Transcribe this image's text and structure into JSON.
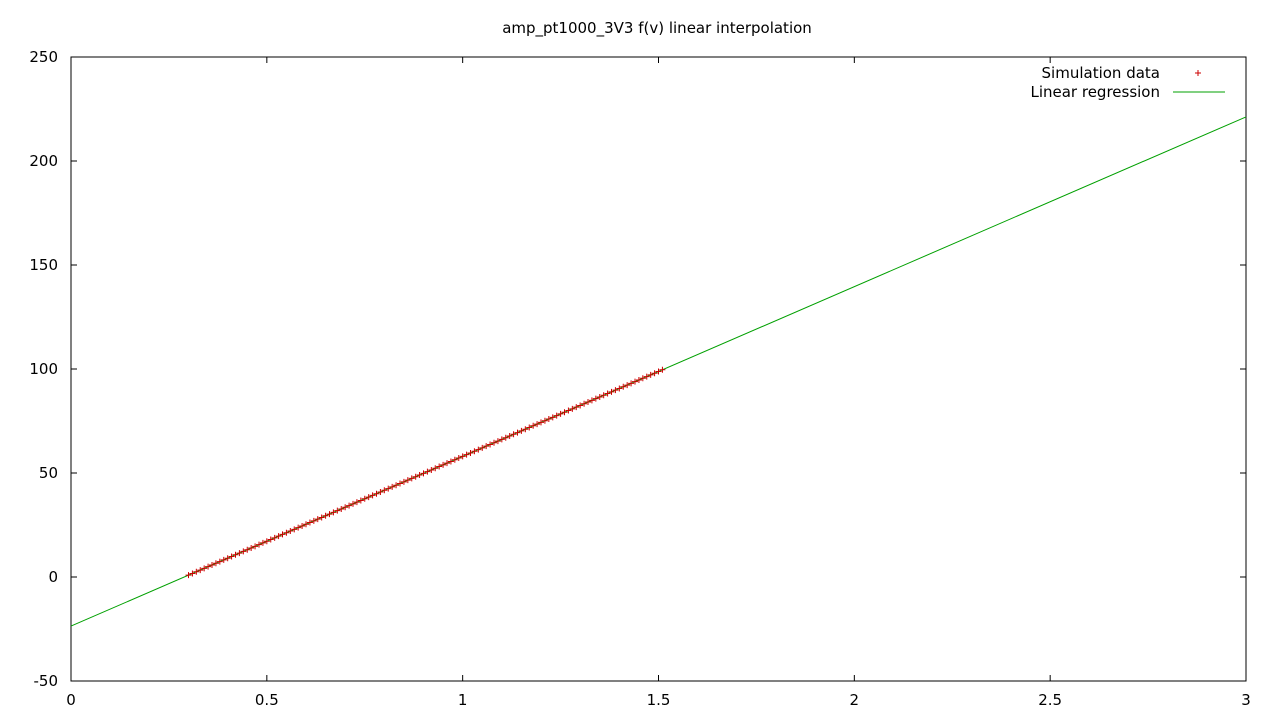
{
  "chart_data": {
    "type": "scatter",
    "title": "amp_pt1000_3V3 f(v) linear interpolation",
    "xlabel": "",
    "ylabel": "",
    "xlim": [
      0,
      3
    ],
    "ylim": [
      -50,
      250
    ],
    "x_ticks": [
      0,
      0.5,
      1,
      1.5,
      2,
      2.5,
      3
    ],
    "x_tick_labels": [
      "0",
      "0.5",
      "1",
      "1.5",
      "2",
      "2.5",
      "3"
    ],
    "y_ticks": [
      -50,
      0,
      50,
      100,
      150,
      200,
      250
    ],
    "y_tick_labels": [
      "-50",
      "0",
      "50",
      "100",
      "150",
      "200",
      "250"
    ],
    "grid": false,
    "legend_position": "top-right",
    "series": [
      {
        "name": "Simulation data",
        "kind": "points",
        "marker": "plus",
        "color": "#cc0000",
        "x_start": 0.3,
        "x_end": 1.51,
        "x_step": 0.01,
        "slope": 81.6,
        "intercept": -23.6
      },
      {
        "name": "Linear regression",
        "kind": "line",
        "color": "#00a000",
        "x": [
          0,
          3
        ],
        "y": [
          -23.6,
          221.2
        ]
      }
    ]
  }
}
